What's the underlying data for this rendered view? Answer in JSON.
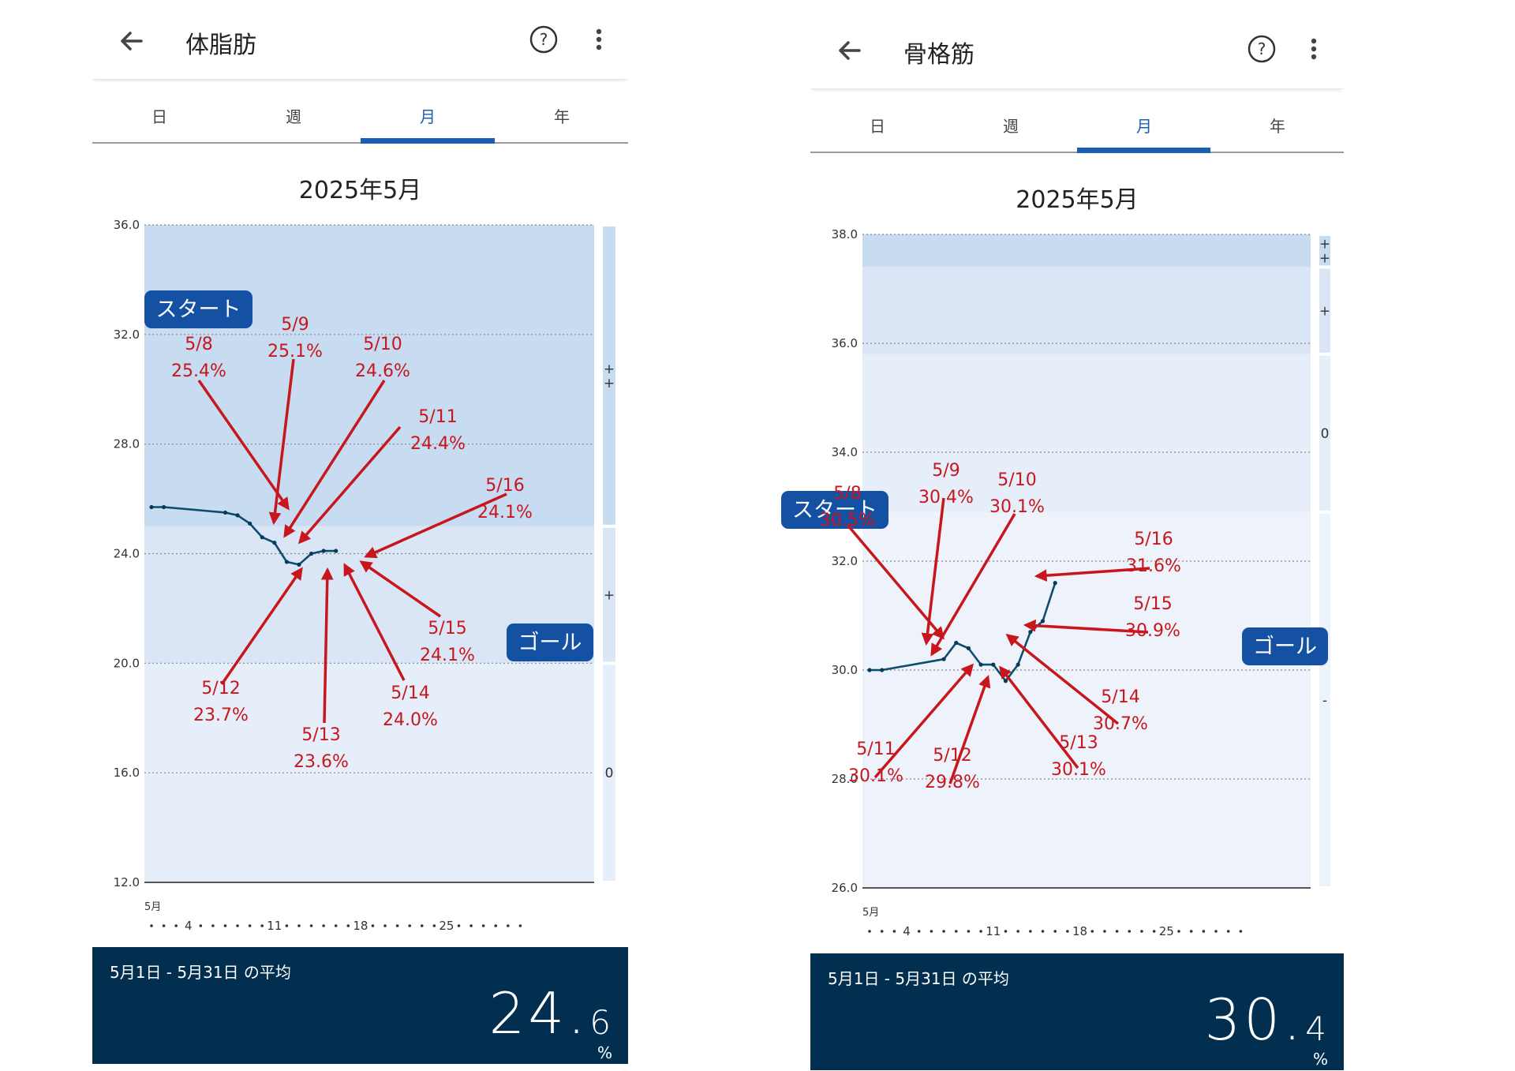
{
  "panels": [
    {
      "title": "体脂肪",
      "tabs": [
        "日",
        "週",
        "月",
        "年"
      ],
      "active_tab": "月",
      "period": "2025年5月",
      "start_label": "スタート",
      "goal_label": "ゴール",
      "zone_labels": [
        "+\n+",
        "+",
        "0"
      ],
      "x_month_label": "5月",
      "x_ticks": [
        "4",
        "11",
        "18",
        "25"
      ],
      "avg_label": "5月1日 - 5月31日 の平均",
      "avg_int": "24.",
      "avg_dec": "6",
      "avg_unit": "%",
      "annotations": [
        {
          "date": "5/8",
          "value": "25.4%"
        },
        {
          "date": "5/9",
          "value": "25.1%"
        },
        {
          "date": "5/10",
          "value": "24.6%"
        },
        {
          "date": "5/11",
          "value": "24.4%"
        },
        {
          "date": "5/16",
          "value": "24.1%"
        },
        {
          "date": "5/15",
          "value": "24.1%"
        },
        {
          "date": "5/12",
          "value": "23.7%"
        },
        {
          "date": "5/14",
          "value": "24.0%"
        },
        {
          "date": "5/13",
          "value": "23.6%"
        }
      ],
      "chart_data": {
        "type": "line",
        "ylim": [
          12,
          36
        ],
        "y_ticks": [
          "12.0",
          "16.0",
          "20.0",
          "24.0",
          "28.0",
          "32.0",
          "36.0"
        ],
        "x": [
          1,
          2,
          7,
          8,
          9,
          10,
          11,
          12,
          13,
          14,
          15,
          16
        ],
        "y": [
          25.7,
          25.7,
          25.5,
          25.4,
          25.1,
          24.6,
          24.4,
          23.7,
          23.6,
          24.0,
          24.1,
          24.1
        ],
        "zones": [
          {
            "from": 25.0,
            "to": 36.0,
            "label": "+\n+",
            "color": "#c7dbf1"
          },
          {
            "from": 20.0,
            "to": 25.0,
            "label": "+",
            "color": "#dae6f5"
          },
          {
            "from": 12.0,
            "to": 20.0,
            "label": "0",
            "color": "#e6eef9"
          }
        ],
        "line_color": "#0e4c6e",
        "annotation_color": "#c8161d"
      }
    },
    {
      "title": "骨格筋",
      "tabs": [
        "日",
        "週",
        "月",
        "年"
      ],
      "active_tab": "月",
      "period": "2025年5月",
      "start_label": "スタート",
      "goal_label": "ゴール",
      "zone_labels": [
        "+\n+",
        "+",
        "0",
        "-"
      ],
      "x_month_label": "5月",
      "x_ticks": [
        "4",
        "11",
        "18",
        "25"
      ],
      "avg_label": "5月1日 - 5月31日 の平均",
      "avg_int": "30.",
      "avg_dec": "4",
      "avg_unit": "%",
      "annotations": [
        {
          "date": "5/8",
          "value": "30.5%"
        },
        {
          "date": "5/9",
          "value": "30.4%"
        },
        {
          "date": "5/10",
          "value": "30.1%"
        },
        {
          "date": "5/16",
          "value": "31.6%"
        },
        {
          "date": "5/15",
          "value": "30.9%"
        },
        {
          "date": "5/14",
          "value": "30.7%"
        },
        {
          "date": "5/13",
          "value": "30.1%"
        },
        {
          "date": "5/11",
          "value": "30.1%"
        },
        {
          "date": "5/12",
          "value": "29.8%"
        }
      ],
      "chart_data": {
        "type": "line",
        "ylim": [
          26,
          38
        ],
        "y_ticks": [
          "26.0",
          "28.0",
          "30.0",
          "32.0",
          "34.0",
          "36.0",
          "38.0"
        ],
        "x": [
          1,
          2,
          7,
          8,
          9,
          10,
          11,
          12,
          13,
          14,
          15,
          16
        ],
        "y": [
          30.0,
          30.0,
          30.2,
          30.5,
          30.4,
          30.1,
          30.1,
          29.8,
          30.1,
          30.7,
          30.9,
          31.6
        ],
        "zones": [
          {
            "from": 37.4,
            "to": 38.0,
            "label": "+\n+",
            "color": "#c7dbf1"
          },
          {
            "from": 35.8,
            "to": 37.4,
            "label": "+",
            "color": "#dae6f5"
          },
          {
            "from": 32.9,
            "to": 35.8,
            "label": "0",
            "color": "#e6eef9"
          },
          {
            "from": 26.0,
            "to": 32.9,
            "label": "-",
            "color": "#eef3fb"
          }
        ],
        "line_color": "#0e4c6e",
        "annotation_color": "#c8161d"
      }
    }
  ]
}
